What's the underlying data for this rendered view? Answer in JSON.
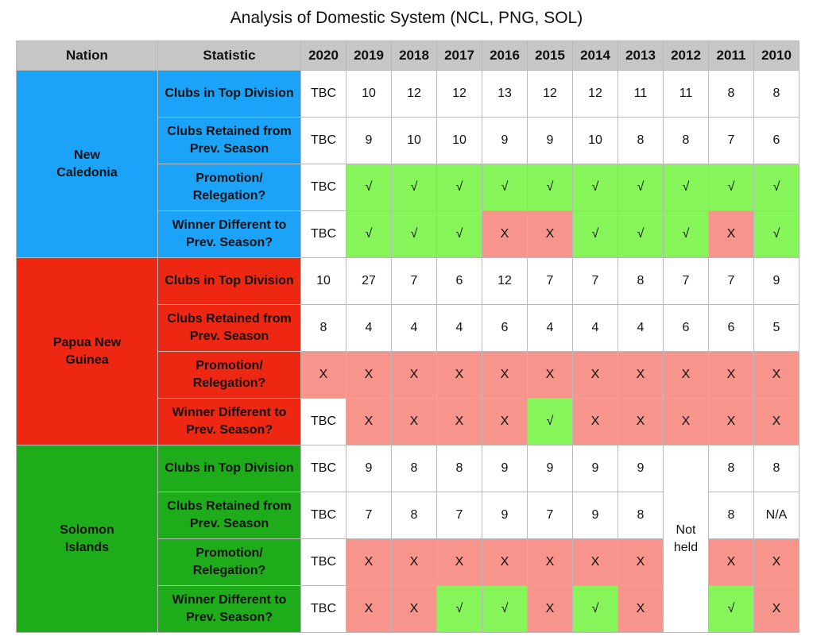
{
  "title": "Analysis of Domestic System (NCL, PNG, SOL)",
  "header": {
    "nation": "Nation",
    "statistic": "Statistic",
    "years": [
      "2020",
      "2019",
      "2018",
      "2017",
      "2016",
      "2015",
      "2014",
      "2013",
      "2012",
      "2011",
      "2010"
    ]
  },
  "colors": {
    "header_bg": "#c6c6c6",
    "ncl_bg": "#1aa3f8",
    "ncl_text": "#0f7a16",
    "png_bg": "#ee2712",
    "png_text": "#111111",
    "sol_bg": "#1fac1a",
    "sol_text": "#f4f236",
    "yes_bg": "#85f55a",
    "no_bg": "#f7958c"
  },
  "not_held": "Not held",
  "nations": [
    {
      "key": "ncl",
      "name": "New Caledonia",
      "rows": [
        {
          "stat": "Clubs in Top Division",
          "cells": [
            {
              "v": "TBC",
              "c": "w"
            },
            {
              "v": "10",
              "c": "w"
            },
            {
              "v": "12",
              "c": "w"
            },
            {
              "v": "12",
              "c": "w"
            },
            {
              "v": "13",
              "c": "w"
            },
            {
              "v": "12",
              "c": "w"
            },
            {
              "v": "12",
              "c": "w"
            },
            {
              "v": "11",
              "c": "w"
            },
            {
              "v": "11",
              "c": "w"
            },
            {
              "v": "8",
              "c": "w"
            },
            {
              "v": "8",
              "c": "w"
            }
          ]
        },
        {
          "stat": "Clubs Retained from Prev. Season",
          "cells": [
            {
              "v": "TBC",
              "c": "w"
            },
            {
              "v": "9",
              "c": "w"
            },
            {
              "v": "10",
              "c": "w"
            },
            {
              "v": "10",
              "c": "w"
            },
            {
              "v": "9",
              "c": "w"
            },
            {
              "v": "9",
              "c": "w"
            },
            {
              "v": "10",
              "c": "w"
            },
            {
              "v": "8",
              "c": "w"
            },
            {
              "v": "8",
              "c": "w"
            },
            {
              "v": "7",
              "c": "w"
            },
            {
              "v": "6",
              "c": "w"
            }
          ]
        },
        {
          "stat": "Promotion/ Relegation?",
          "cells": [
            {
              "v": "TBC",
              "c": "w"
            },
            {
              "v": "√",
              "c": "g"
            },
            {
              "v": "√",
              "c": "g"
            },
            {
              "v": "√",
              "c": "g"
            },
            {
              "v": "√",
              "c": "g"
            },
            {
              "v": "√",
              "c": "g"
            },
            {
              "v": "√",
              "c": "g"
            },
            {
              "v": "√",
              "c": "g"
            },
            {
              "v": "√",
              "c": "g"
            },
            {
              "v": "√",
              "c": "g"
            },
            {
              "v": "√",
              "c": "g"
            }
          ]
        },
        {
          "stat": "Winner Different to Prev. Season?",
          "cells": [
            {
              "v": "TBC",
              "c": "w"
            },
            {
              "v": "√",
              "c": "g"
            },
            {
              "v": "√",
              "c": "g"
            },
            {
              "v": "√",
              "c": "g"
            },
            {
              "v": "X",
              "c": "r"
            },
            {
              "v": "X",
              "c": "r"
            },
            {
              "v": "√",
              "c": "g"
            },
            {
              "v": "√",
              "c": "g"
            },
            {
              "v": "√",
              "c": "g"
            },
            {
              "v": "X",
              "c": "r"
            },
            {
              "v": "√",
              "c": "g"
            }
          ]
        }
      ]
    },
    {
      "key": "png",
      "name": "Papua New Guinea",
      "rows": [
        {
          "stat": "Clubs in Top Division",
          "cells": [
            {
              "v": "10",
              "c": "w"
            },
            {
              "v": "27",
              "c": "w"
            },
            {
              "v": "7",
              "c": "w"
            },
            {
              "v": "6",
              "c": "w"
            },
            {
              "v": "12",
              "c": "w"
            },
            {
              "v": "7",
              "c": "w"
            },
            {
              "v": "7",
              "c": "w"
            },
            {
              "v": "8",
              "c": "w"
            },
            {
              "v": "7",
              "c": "w"
            },
            {
              "v": "7",
              "c": "w"
            },
            {
              "v": "9",
              "c": "w"
            }
          ]
        },
        {
          "stat": "Clubs Retained from Prev. Season",
          "cells": [
            {
              "v": "8",
              "c": "w"
            },
            {
              "v": "4",
              "c": "w"
            },
            {
              "v": "4",
              "c": "w"
            },
            {
              "v": "4",
              "c": "w"
            },
            {
              "v": "6",
              "c": "w"
            },
            {
              "v": "4",
              "c": "w"
            },
            {
              "v": "4",
              "c": "w"
            },
            {
              "v": "4",
              "c": "w"
            },
            {
              "v": "6",
              "c": "w"
            },
            {
              "v": "6",
              "c": "w"
            },
            {
              "v": "5",
              "c": "w"
            }
          ]
        },
        {
          "stat": "Promotion/ Relegation?",
          "cells": [
            {
              "v": "X",
              "c": "r"
            },
            {
              "v": "X",
              "c": "r"
            },
            {
              "v": "X",
              "c": "r"
            },
            {
              "v": "X",
              "c": "r"
            },
            {
              "v": "X",
              "c": "r"
            },
            {
              "v": "X",
              "c": "r"
            },
            {
              "v": "X",
              "c": "r"
            },
            {
              "v": "X",
              "c": "r"
            },
            {
              "v": "X",
              "c": "r"
            },
            {
              "v": "X",
              "c": "r"
            },
            {
              "v": "X",
              "c": "r"
            }
          ]
        },
        {
          "stat": "Winner Different to Prev. Season?",
          "cells": [
            {
              "v": "TBC",
              "c": "w"
            },
            {
              "v": "X",
              "c": "r"
            },
            {
              "v": "X",
              "c": "r"
            },
            {
              "v": "X",
              "c": "r"
            },
            {
              "v": "X",
              "c": "r"
            },
            {
              "v": "√",
              "c": "g"
            },
            {
              "v": "X",
              "c": "r"
            },
            {
              "v": "X",
              "c": "r"
            },
            {
              "v": "X",
              "c": "r"
            },
            {
              "v": "X",
              "c": "r"
            },
            {
              "v": "X",
              "c": "r"
            }
          ]
        }
      ]
    },
    {
      "key": "sol",
      "name": "Solomon Islands",
      "rows": [
        {
          "stat": "Clubs in Top Division",
          "cells": [
            {
              "v": "TBC",
              "c": "w"
            },
            {
              "v": "9",
              "c": "w"
            },
            {
              "v": "8",
              "c": "w"
            },
            {
              "v": "8",
              "c": "w"
            },
            {
              "v": "9",
              "c": "w"
            },
            {
              "v": "9",
              "c": "w"
            },
            {
              "v": "9",
              "c": "w"
            },
            {
              "v": "9",
              "c": "w"
            },
            {
              "v": "",
              "c": "na"
            },
            {
              "v": "8",
              "c": "w"
            },
            {
              "v": "8",
              "c": "w"
            }
          ]
        },
        {
          "stat": "Clubs Retained from Prev. Season",
          "cells": [
            {
              "v": "TBC",
              "c": "w"
            },
            {
              "v": "7",
              "c": "w"
            },
            {
              "v": "8",
              "c": "w"
            },
            {
              "v": "7",
              "c": "w"
            },
            {
              "v": "9",
              "c": "w"
            },
            {
              "v": "7",
              "c": "w"
            },
            {
              "v": "9",
              "c": "w"
            },
            {
              "v": "8",
              "c": "w"
            },
            {
              "v": "",
              "c": "na"
            },
            {
              "v": "8",
              "c": "w"
            },
            {
              "v": "N/A",
              "c": "w"
            }
          ]
        },
        {
          "stat": "Promotion/ Relegation?",
          "cells": [
            {
              "v": "TBC",
              "c": "w"
            },
            {
              "v": "X",
              "c": "r"
            },
            {
              "v": "X",
              "c": "r"
            },
            {
              "v": "X",
              "c": "r"
            },
            {
              "v": "X",
              "c": "r"
            },
            {
              "v": "X",
              "c": "r"
            },
            {
              "v": "X",
              "c": "r"
            },
            {
              "v": "X",
              "c": "r"
            },
            {
              "v": "",
              "c": "na"
            },
            {
              "v": "X",
              "c": "r"
            },
            {
              "v": "X",
              "c": "r"
            }
          ]
        },
        {
          "stat": "Winner Different to Prev. Season?",
          "cells": [
            {
              "v": "TBC",
              "c": "w"
            },
            {
              "v": "X",
              "c": "r"
            },
            {
              "v": "X",
              "c": "r"
            },
            {
              "v": "√",
              "c": "g"
            },
            {
              "v": "√",
              "c": "g"
            },
            {
              "v": "X",
              "c": "r"
            },
            {
              "v": "√",
              "c": "g"
            },
            {
              "v": "X",
              "c": "r"
            },
            {
              "v": "",
              "c": "na"
            },
            {
              "v": "√",
              "c": "g"
            },
            {
              "v": "X",
              "c": "r"
            }
          ]
        }
      ]
    }
  ]
}
